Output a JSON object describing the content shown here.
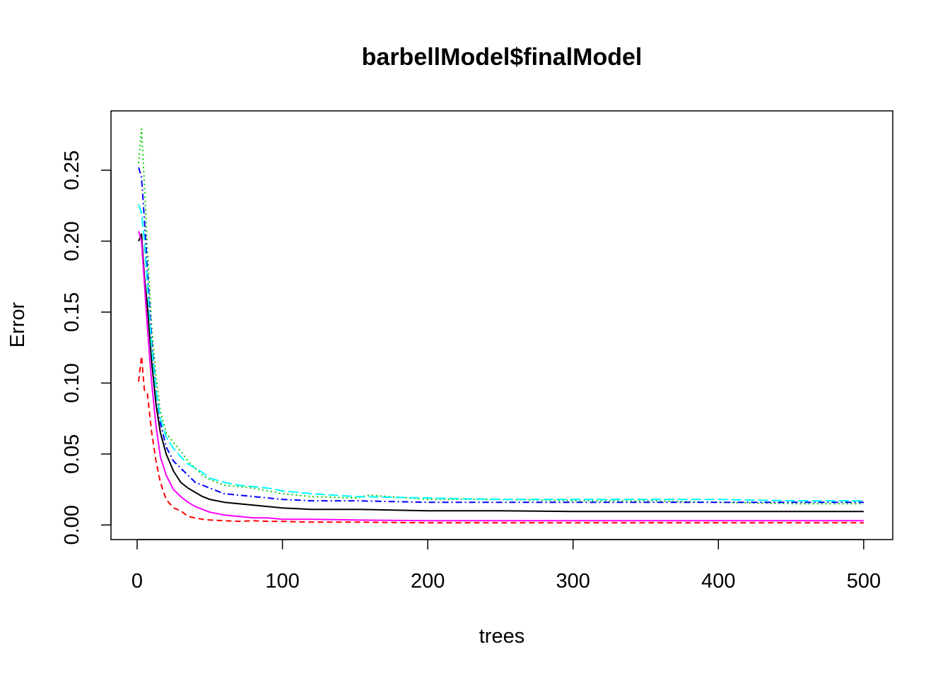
{
  "chart_data": {
    "type": "line",
    "title": "barbellModel$finalModel",
    "xlabel": "trees",
    "ylabel": "Error",
    "xlim": [
      -18,
      520
    ],
    "ylim": [
      -0.0103,
      0.2918
    ],
    "x_ticks": [
      0,
      100,
      200,
      300,
      400,
      500
    ],
    "x_tick_labels": [
      "0",
      "100",
      "200",
      "300",
      "400",
      "500"
    ],
    "y_ticks": [
      0.0,
      0.05,
      0.1,
      0.15,
      0.2,
      0.25
    ],
    "y_tick_labels": [
      "0.00",
      "0.05",
      "0.10",
      "0.15",
      "0.20",
      "0.25"
    ],
    "grid": false,
    "legend": "none",
    "series": [
      {
        "color": "#000000",
        "dash": "",
        "x": [
          1,
          3,
          5,
          7,
          10,
          13,
          16,
          20,
          25,
          30,
          35,
          40,
          45,
          50,
          60,
          70,
          80,
          90,
          100,
          120,
          150,
          200,
          250,
          300,
          350,
          400,
          450,
          500
        ],
        "y": [
          0.2,
          0.205,
          0.175,
          0.155,
          0.115,
          0.085,
          0.065,
          0.05,
          0.038,
          0.03,
          0.026,
          0.023,
          0.02,
          0.018,
          0.016,
          0.015,
          0.014,
          0.013,
          0.012,
          0.011,
          0.011,
          0.01,
          0.01,
          0.0095,
          0.0095,
          0.0095,
          0.0095,
          0.0095
        ]
      },
      {
        "color": "#ff0000",
        "dash": "8,5",
        "x": [
          1,
          3,
          5,
          7,
          10,
          13,
          16,
          20,
          25,
          30,
          35,
          40,
          45,
          50,
          60,
          70,
          80,
          90,
          100,
          120,
          150,
          200,
          250,
          300,
          350,
          400,
          450,
          500
        ],
        "y": [
          0.101,
          0.119,
          0.095,
          0.093,
          0.065,
          0.045,
          0.03,
          0.018,
          0.012,
          0.01,
          0.006,
          0.005,
          0.004,
          0.0035,
          0.003,
          0.0025,
          0.003,
          0.0025,
          0.0025,
          0.002,
          0.002,
          0.0015,
          0.0015,
          0.0015,
          0.0015,
          0.0015,
          0.0015,
          0.0015
        ]
      },
      {
        "color": "#00cd00",
        "dash": "2,4",
        "x": [
          1,
          3,
          5,
          7,
          10,
          13,
          16,
          20,
          25,
          30,
          35,
          40,
          45,
          50,
          60,
          70,
          80,
          90,
          100,
          120,
          150,
          160,
          200,
          250,
          300,
          350,
          400,
          450,
          500
        ],
        "y": [
          0.255,
          0.279,
          0.24,
          0.195,
          0.14,
          0.105,
          0.08,
          0.065,
          0.058,
          0.052,
          0.045,
          0.04,
          0.035,
          0.032,
          0.028,
          0.027,
          0.026,
          0.024,
          0.022,
          0.02,
          0.019,
          0.021,
          0.018,
          0.018,
          0.017,
          0.017,
          0.016,
          0.015,
          0.015
        ]
      },
      {
        "color": "#0000ff",
        "dash": "9,4,2,4",
        "x": [
          1,
          3,
          5,
          7,
          10,
          13,
          16,
          20,
          25,
          30,
          35,
          40,
          45,
          50,
          60,
          70,
          80,
          90,
          100,
          120,
          150,
          200,
          250,
          300,
          350,
          400,
          450,
          500
        ],
        "y": [
          0.252,
          0.245,
          0.215,
          0.18,
          0.13,
          0.095,
          0.072,
          0.055,
          0.045,
          0.04,
          0.035,
          0.03,
          0.028,
          0.026,
          0.022,
          0.021,
          0.02,
          0.019,
          0.018,
          0.017,
          0.017,
          0.016,
          0.016,
          0.016,
          0.016,
          0.016,
          0.016,
          0.016
        ]
      },
      {
        "color": "#00ffff",
        "dash": "14,5",
        "x": [
          1,
          3,
          5,
          7,
          10,
          13,
          16,
          20,
          25,
          30,
          35,
          40,
          45,
          50,
          60,
          70,
          80,
          90,
          100,
          120,
          150,
          200,
          250,
          300,
          350,
          400,
          450,
          500
        ],
        "y": [
          0.226,
          0.22,
          0.2,
          0.17,
          0.125,
          0.095,
          0.075,
          0.062,
          0.054,
          0.048,
          0.043,
          0.04,
          0.037,
          0.033,
          0.03,
          0.028,
          0.027,
          0.026,
          0.024,
          0.022,
          0.02,
          0.019,
          0.018,
          0.018,
          0.018,
          0.018,
          0.017,
          0.017
        ]
      },
      {
        "color": "#ff00ff",
        "dash": "",
        "x": [
          1,
          3,
          5,
          7,
          10,
          13,
          16,
          20,
          25,
          30,
          35,
          40,
          45,
          50,
          60,
          70,
          80,
          90,
          100,
          120,
          150,
          200,
          250,
          300,
          350,
          400,
          450,
          500
        ],
        "y": [
          0.207,
          0.2,
          0.17,
          0.14,
          0.1,
          0.07,
          0.048,
          0.035,
          0.025,
          0.02,
          0.016,
          0.013,
          0.011,
          0.009,
          0.007,
          0.006,
          0.005,
          0.005,
          0.004,
          0.004,
          0.0035,
          0.003,
          0.003,
          0.003,
          0.003,
          0.003,
          0.003,
          0.003
        ]
      }
    ]
  }
}
